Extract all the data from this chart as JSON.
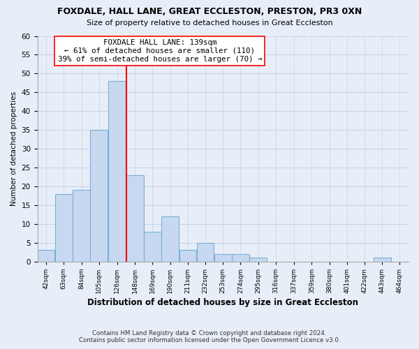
{
  "title": "FOXDALE, HALL LANE, GREAT ECCLESTON, PRESTON, PR3 0XN",
  "subtitle": "Size of property relative to detached houses in Great Eccleston",
  "xlabel": "Distribution of detached houses by size in Great Eccleston",
  "ylabel": "Number of detached properties",
  "footer_line1": "Contains HM Land Registry data © Crown copyright and database right 2024.",
  "footer_line2": "Contains public sector information licensed under the Open Government Licence v3.0.",
  "bin_labels": [
    "42sqm",
    "63sqm",
    "84sqm",
    "105sqm",
    "126sqm",
    "148sqm",
    "169sqm",
    "190sqm",
    "211sqm",
    "232sqm",
    "253sqm",
    "274sqm",
    "295sqm",
    "316sqm",
    "337sqm",
    "359sqm",
    "380sqm",
    "401sqm",
    "422sqm",
    "443sqm",
    "464sqm"
  ],
  "bar_heights": [
    3,
    18,
    19,
    35,
    48,
    23,
    8,
    12,
    3,
    5,
    2,
    2,
    1,
    0,
    0,
    0,
    0,
    0,
    0,
    1,
    0
  ],
  "bar_color": "#c6d9f1",
  "bar_edge_color": "#7bafd4",
  "marker_line_color": "red",
  "marker_label": "FOXDALE HALL LANE: 139sqm",
  "annotation_line1": "← 61% of detached houses are smaller (110)",
  "annotation_line2": "39% of semi-detached houses are larger (70) →",
  "annotation_box_color": "white",
  "annotation_box_edge": "red",
  "ylim": [
    0,
    60
  ],
  "yticks": [
    0,
    5,
    10,
    15,
    20,
    25,
    30,
    35,
    40,
    45,
    50,
    55,
    60
  ],
  "bin_edges": [
    42,
    63,
    84,
    105,
    126,
    148,
    169,
    190,
    211,
    232,
    253,
    274,
    295,
    316,
    337,
    359,
    380,
    401,
    422,
    443,
    464,
    485
  ],
  "grid_color": "#c8d4e8",
  "background_color": "#e8eef8"
}
